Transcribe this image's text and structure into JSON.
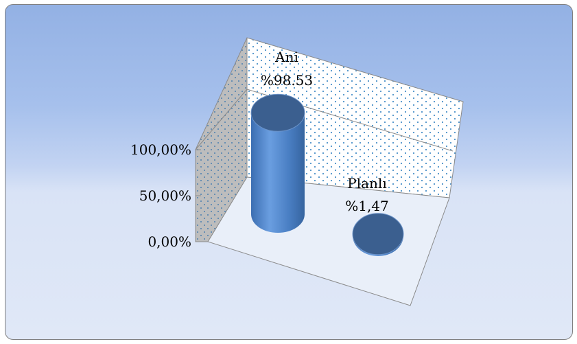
{
  "chart_data": {
    "type": "bar",
    "style": "3d-cylinder",
    "categories": [
      "Ani",
      "Planlı"
    ],
    "values": [
      98.53,
      1.47
    ],
    "value_labels": [
      "%98.53",
      "%1,47"
    ],
    "ylim": [
      0,
      100
    ],
    "ticks": [
      {
        "value": 0,
        "label": "0,00%"
      },
      {
        "value": 50,
        "label": "50,00%"
      },
      {
        "value": 100,
        "label": "100,00%"
      }
    ],
    "colors": {
      "bar": "#4f81bd",
      "bar_top": "#3b5f8f",
      "background_top": "#93b1e4",
      "background_bottom": "#e0e8f7",
      "back_wall_dots": "#4a90c8"
    },
    "grid": true,
    "legend": "none"
  }
}
